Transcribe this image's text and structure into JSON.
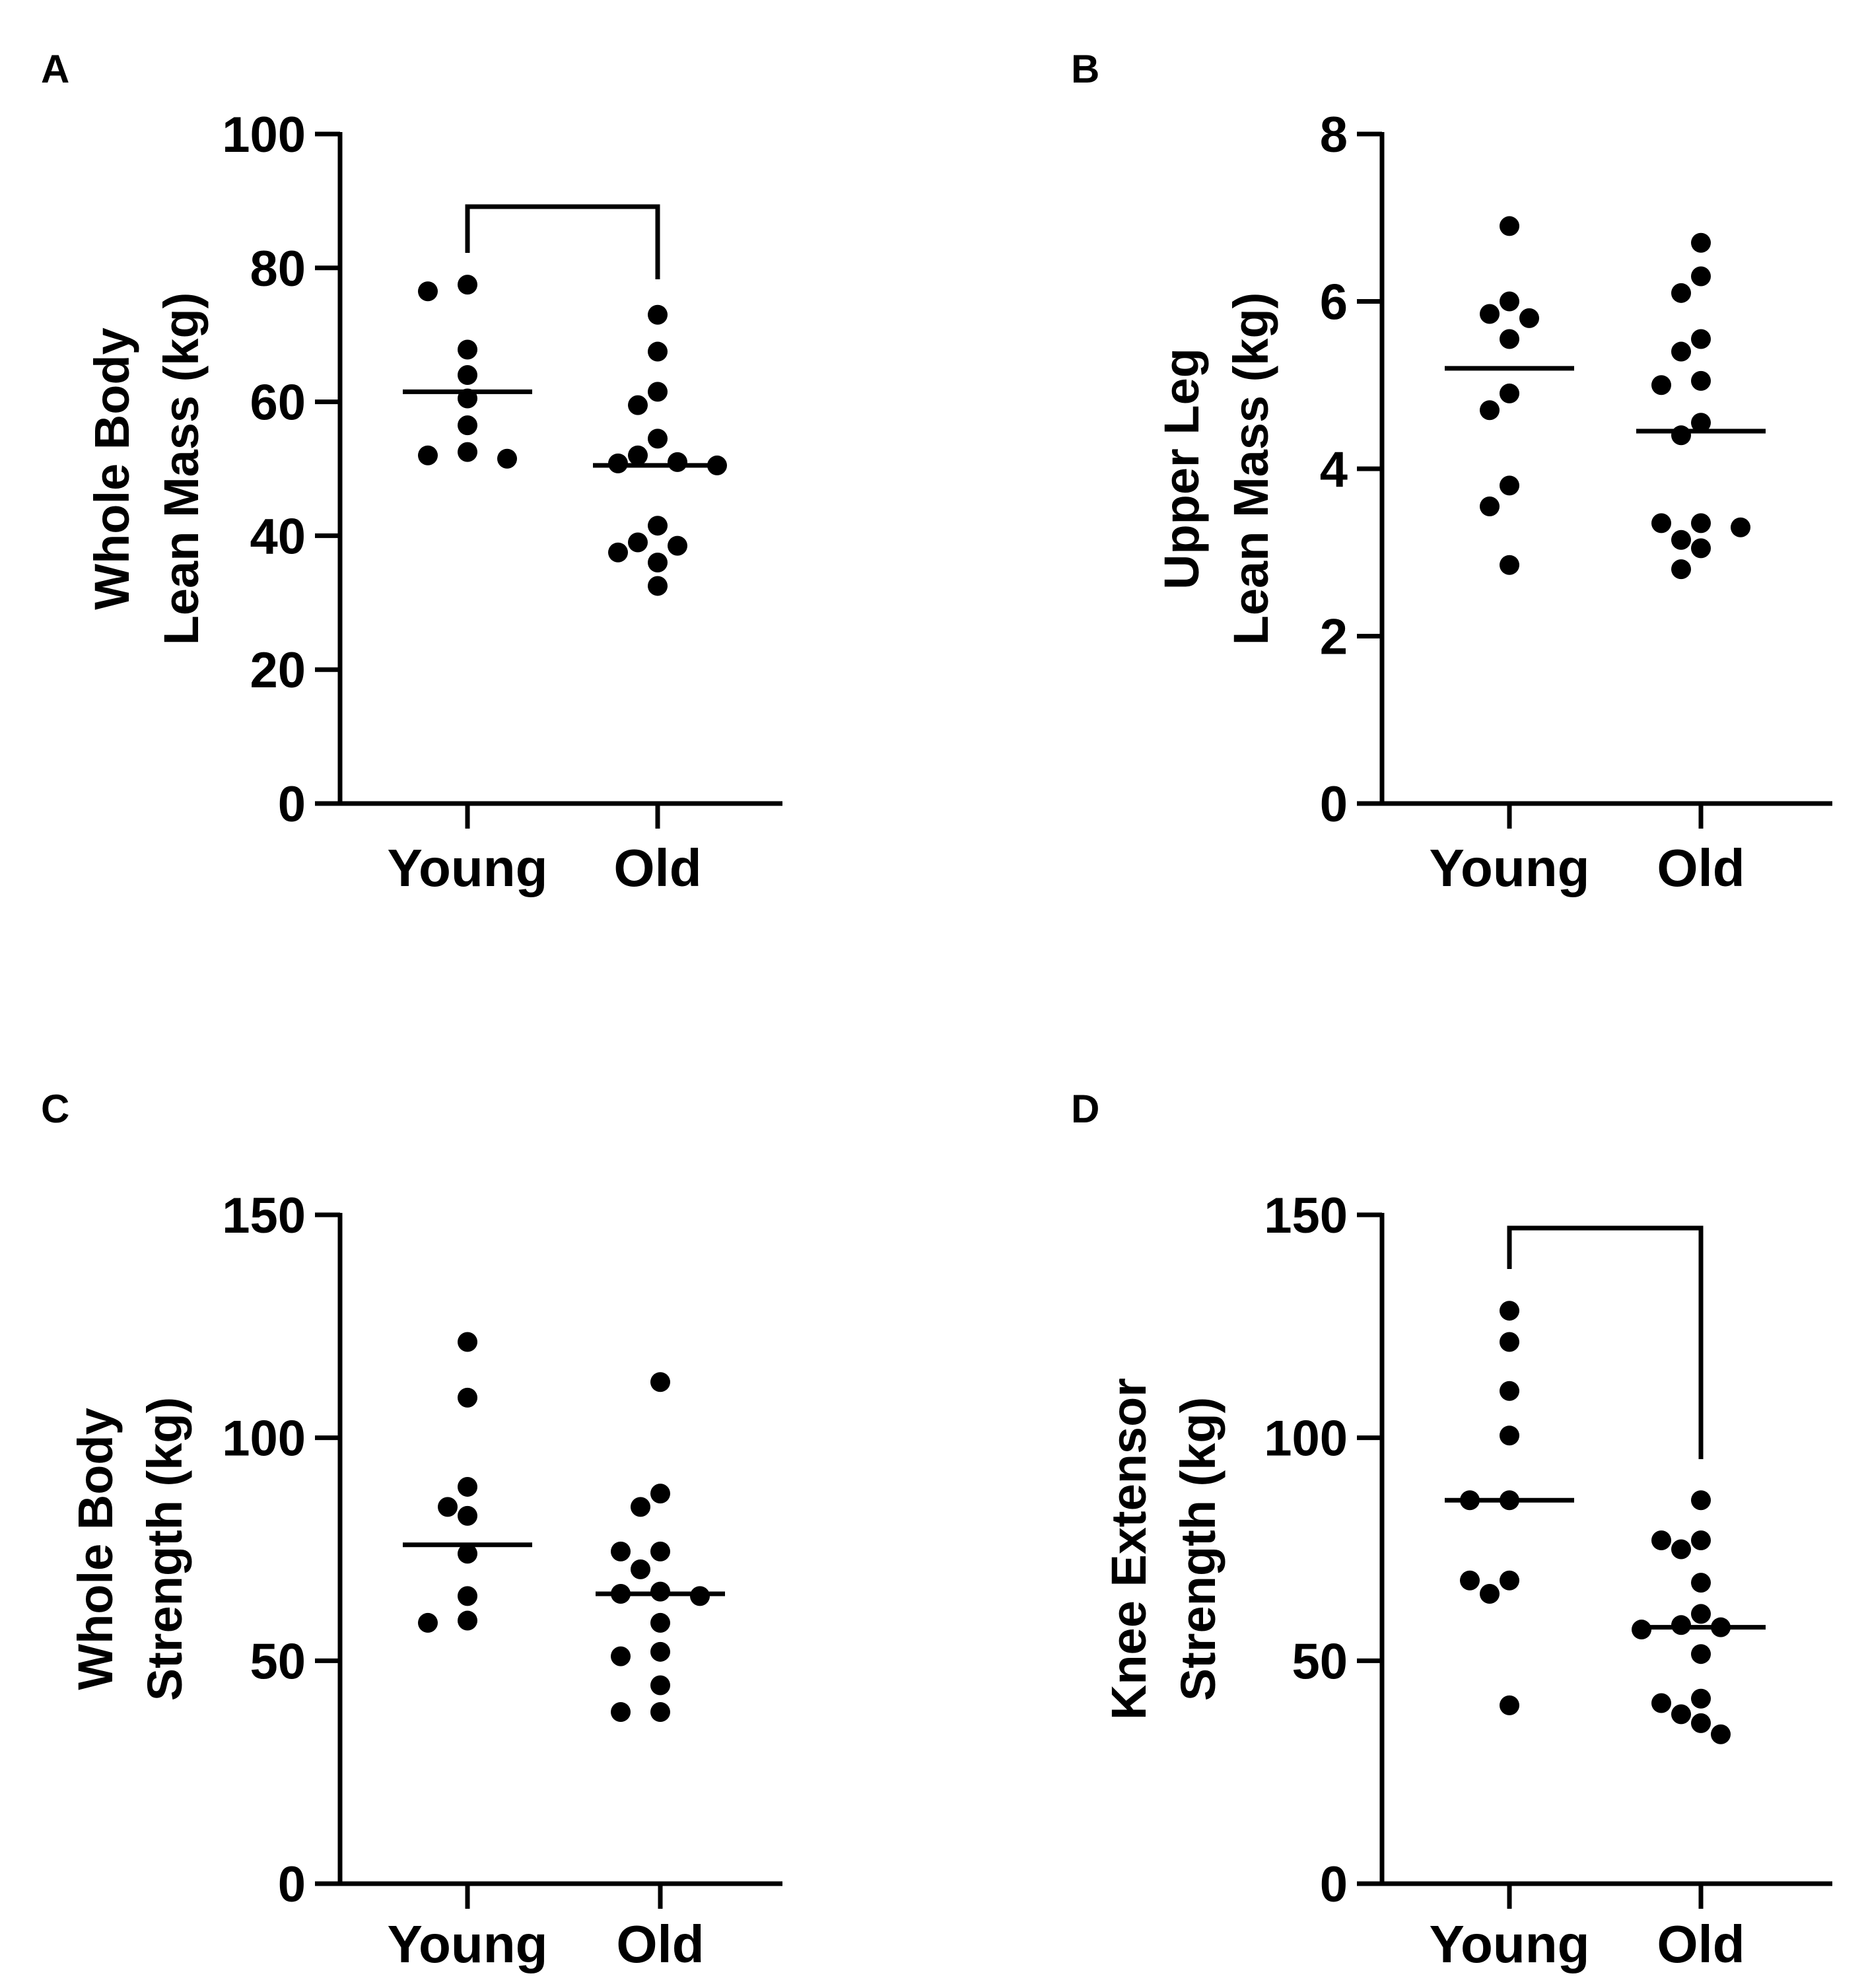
{
  "chart_data": [
    {
      "panel": "A",
      "type": "scatter",
      "categories": [
        "Young",
        "Old"
      ],
      "ylabel": [
        "Whole Body",
        "Lean Mass (kg)"
      ],
      "ylim": [
        0,
        100
      ],
      "yticks": [
        0,
        20,
        40,
        60,
        80,
        100
      ],
      "series": [
        {
          "name": "Young",
          "values": [
            76.5,
            77.5,
            67.8,
            64.0,
            60.5,
            56.5,
            51.5,
            52.5,
            52.0
          ]
        },
        {
          "name": "Old",
          "values": [
            73.0,
            67.5,
            61.5,
            59.5,
            54.5,
            50.8,
            52.0,
            51.0,
            50.5,
            41.5,
            37.5,
            38.5,
            39.0,
            36.0,
            32.5
          ]
        }
      ],
      "means": [
        61.5,
        50.5
      ],
      "significance": true
    },
    {
      "panel": "B",
      "type": "scatter",
      "categories": [
        "Young",
        "Old"
      ],
      "ylabel": [
        "Upper Leg",
        "Lean Mass (kg)"
      ],
      "ylim": [
        0,
        8
      ],
      "yticks": [
        0,
        2,
        4,
        6,
        8
      ],
      "series": [
        {
          "name": "Young",
          "values": [
            6.9,
            6.0,
            5.8,
            5.85,
            5.55,
            4.9,
            4.7,
            3.8,
            3.55,
            2.85
          ]
        },
        {
          "name": "Old",
          "values": [
            6.7,
            6.3,
            6.1,
            5.55,
            5.4,
            5.0,
            5.05,
            4.55,
            4.4,
            3.35,
            3.35,
            3.3,
            3.15,
            3.05,
            2.8
          ]
        }
      ],
      "means": [
        5.2,
        4.45
      ],
      "significance": false
    },
    {
      "panel": "C",
      "type": "scatter",
      "categories": [
        "Young",
        "Old"
      ],
      "ylabel": [
        "Whole Body",
        "Strength (kg)"
      ],
      "ylim": [
        0,
        150
      ],
      "yticks": [
        0,
        50,
        100,
        150
      ],
      "series": [
        {
          "name": "Young",
          "values": [
            121.5,
            109.0,
            89.0,
            84.5,
            82.5,
            74.0,
            64.5,
            58.5,
            59.0
          ]
        },
        {
          "name": "Old",
          "values": [
            112.5,
            87.5,
            84.5,
            74.5,
            74.5,
            70.5,
            65.5,
            65.0,
            64.5,
            58.5,
            52.0,
            51.0,
            44.5,
            38.5,
            38.5
          ]
        }
      ],
      "means": [
        76.0,
        65.0
      ],
      "significance": false
    },
    {
      "panel": "D",
      "type": "scatter",
      "categories": [
        "Young",
        "Old"
      ],
      "ylabel": [
        "Knee Extensor",
        "Strength (kg)"
      ],
      "ylim": [
        0,
        150
      ],
      "yticks": [
        0,
        50,
        100,
        150
      ],
      "series": [
        {
          "name": "Young",
          "values": [
            128.5,
            121.5,
            110.5,
            100.5,
            86.0,
            86.0,
            68.0,
            68.0,
            65.0,
            40.0
          ]
        },
        {
          "name": "Old",
          "values": [
            86.0,
            77.0,
            77.0,
            75.0,
            67.5,
            60.5,
            57.5,
            57.0,
            58.0,
            51.5,
            41.5,
            40.5,
            38.0,
            36.0,
            33.5
          ]
        }
      ],
      "means": [
        86.0,
        57.5
      ],
      "significance": true
    }
  ]
}
